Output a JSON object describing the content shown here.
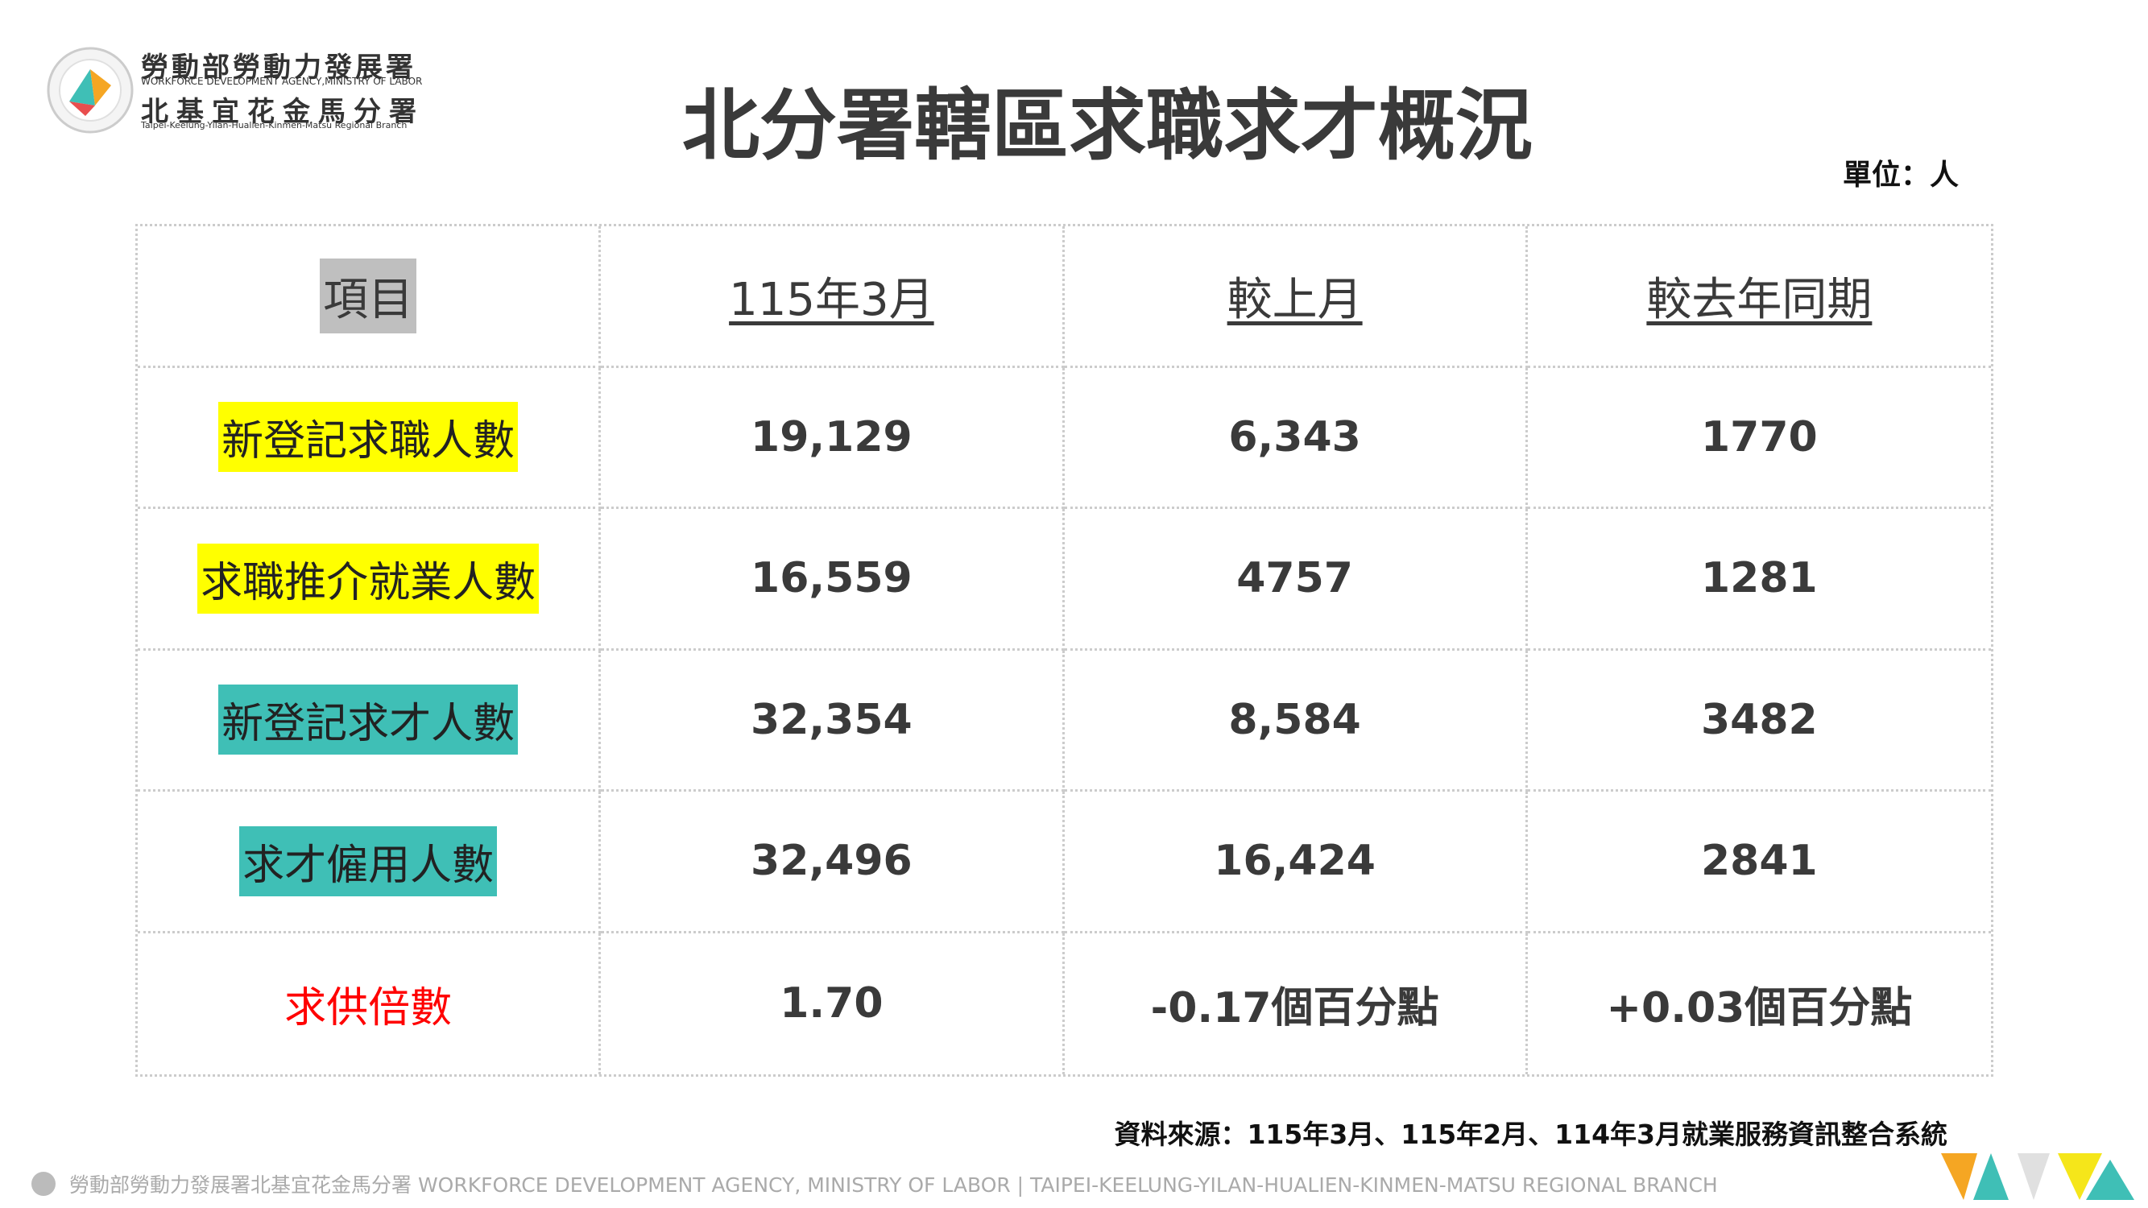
{
  "header": {
    "agency": "勞動部勞動力發展署",
    "agency_en": "WORKFORCE DEVELOPMENT AGENCY,MINISTRY OF LABOR",
    "branch": "北基宜花金馬分署",
    "branch_en": "Taipei-Keelung-Yilan-Hualien-Kinmen-Matsu Regional Branch",
    "title": "北分署轄區求職求才概況",
    "unit": "單位：人"
  },
  "table": {
    "columns": [
      "項目",
      "115年3月",
      "較上月",
      "較去年同期"
    ],
    "rows": [
      [
        "新登記求職人數",
        "19,129",
        "6,343",
        "1770"
      ],
      [
        "求職推介就業人數",
        "16,559",
        "4757",
        "1281"
      ],
      [
        "新登記求才人數",
        "32,354",
        "8,584",
        "3482"
      ],
      [
        "求才僱用人數",
        "32,496",
        "16,424",
        "2841"
      ],
      [
        "求供倍數",
        "1.70",
        "-0.17個百分點",
        "+0.03個百分點"
      ]
    ]
  },
  "source": "資料來源：115年3月、115年2月、114年3月就業服務資訊整合系統",
  "footer": "勞動部勞動力發展署北基宜花金馬分署 WORKFORCE DEVELOPMENT AGENCY, MINISTRY OF LABOR | TAIPEI-KEELUNG-YILAN-HUALIEN-KINMEN-MATSU REGIONAL BRANCH"
}
